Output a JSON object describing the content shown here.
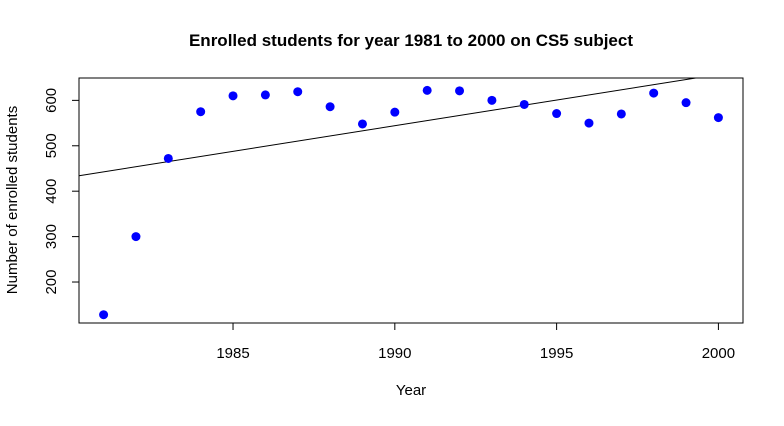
{
  "chart_data": {
    "type": "scatter",
    "title": "Enrolled students for year 1981 to 2000 on CS5 subject",
    "xlabel": "Year",
    "ylabel": "Number of enrolled students",
    "x": [
      1981,
      1982,
      1983,
      1984,
      1985,
      1986,
      1987,
      1988,
      1989,
      1990,
      1991,
      1992,
      1993,
      1994,
      1995,
      1996,
      1997,
      1998,
      1999,
      2000
    ],
    "y": [
      128,
      300,
      472,
      575,
      610,
      612,
      619,
      586,
      548,
      574,
      622,
      621,
      600,
      591,
      571,
      550,
      570,
      616,
      595,
      562
    ],
    "xlim": [
      1980.24,
      2000.76
    ],
    "ylim": [
      109.76,
      649.24
    ],
    "xticks": [
      1985,
      1990,
      1995,
      2000
    ],
    "yticks": [
      200,
      300,
      400,
      500,
      600
    ],
    "grid": false,
    "point_color": "#0000ff",
    "trend_line": {
      "color": "#000000",
      "from": [
        1980.24,
        434
      ],
      "to": [
        1999.3,
        649.24
      ]
    }
  }
}
